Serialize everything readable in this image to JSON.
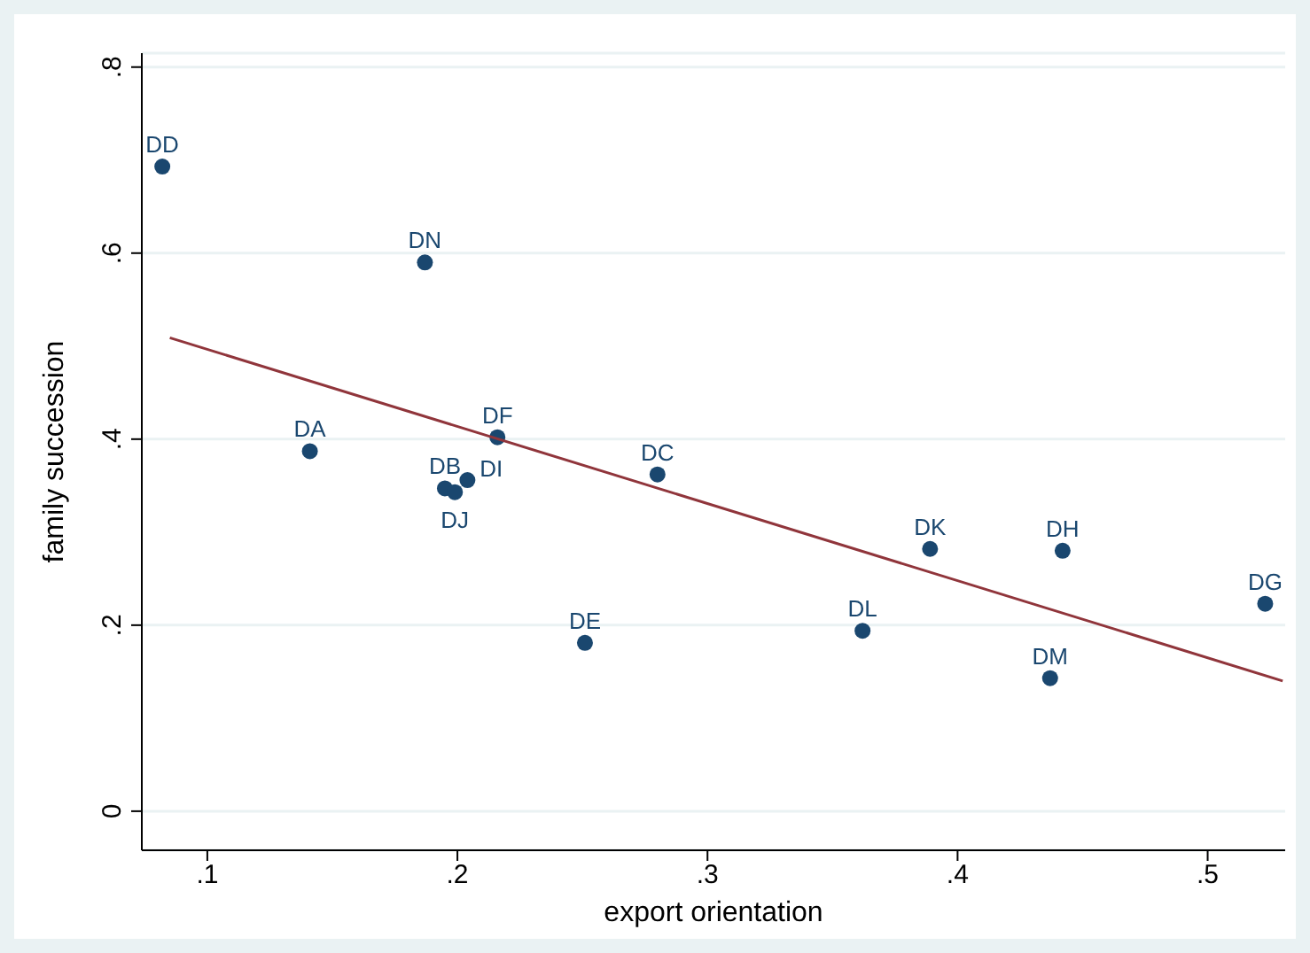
{
  "chart_data": {
    "type": "scatter",
    "xlabel": "export orientation",
    "ylabel": "family succession",
    "xlim": [
      0.0738,
      0.531
    ],
    "ylim": [
      -0.042,
      0.815
    ],
    "xticks": [
      {
        "value": 0.1,
        "label": ".1"
      },
      {
        "value": 0.2,
        "label": ".2"
      },
      {
        "value": 0.3,
        "label": ".3"
      },
      {
        "value": 0.4,
        "label": ".4"
      },
      {
        "value": 0.5,
        "label": ".5"
      }
    ],
    "yticks": [
      {
        "value": 0,
        "label": "0"
      },
      {
        "value": 0.2,
        "label": ".2"
      },
      {
        "value": 0.4,
        "label": ".4"
      },
      {
        "value": 0.6,
        "label": ".6"
      },
      {
        "value": 0.8,
        "label": ".8"
      }
    ],
    "grid": "y",
    "legend": false,
    "series": [
      {
        "marker": "circle",
        "color": "#1a476f",
        "x": [
          0.082,
          0.187,
          0.141,
          0.195,
          0.199,
          0.204,
          0.216,
          0.28,
          0.251,
          0.362,
          0.389,
          0.442,
          0.437,
          0.523
        ],
        "values": [
          0.693,
          0.59,
          0.387,
          0.347,
          0.343,
          0.356,
          0.402,
          0.362,
          0.181,
          0.194,
          0.282,
          0.28,
          0.143,
          0.223
        ],
        "value_labels": [
          "DD",
          "DN",
          "DA",
          "DB",
          "DJ",
          "DI",
          "DF",
          "DC",
          "DE",
          "DL",
          "DK",
          "DH",
          "DM",
          "DG"
        ]
      },
      {
        "type": "line",
        "marker": "none",
        "color": "#90353b",
        "x": [
          0.085,
          0.53
        ],
        "values": [
          0.509,
          0.14
        ]
      }
    ]
  }
}
